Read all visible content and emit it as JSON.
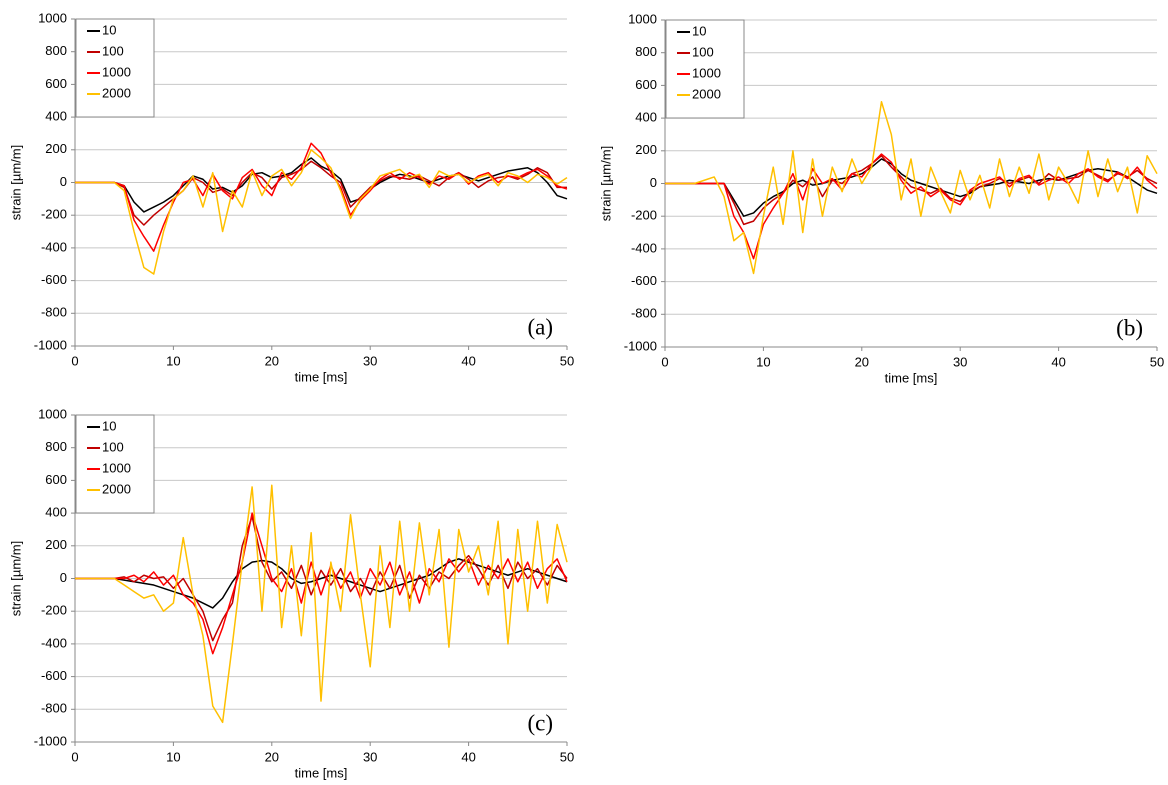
{
  "chart_data": [
    {
      "type": "line",
      "xlabel": "time [ms]",
      "ylabel": "strain [µm/m]",
      "annotation": "(a)",
      "x": [
        0,
        1,
        2,
        3,
        4,
        5,
        6,
        7,
        8,
        9,
        10,
        11,
        12,
        13,
        14,
        15,
        16,
        17,
        18,
        19,
        20,
        21,
        22,
        23,
        24,
        25,
        26,
        27,
        28,
        29,
        30,
        31,
        32,
        33,
        34,
        35,
        36,
        37,
        38,
        39,
        40,
        41,
        42,
        43,
        44,
        45,
        46,
        47,
        48,
        49,
        50
      ],
      "series": [
        {
          "name": "10",
          "color": "#000000",
          "values": [
            0,
            0,
            0,
            0,
            0,
            -20,
            -120,
            -180,
            -150,
            -120,
            -80,
            -20,
            40,
            20,
            -40,
            -30,
            -60,
            -20,
            50,
            60,
            30,
            40,
            60,
            110,
            150,
            100,
            70,
            20,
            -120,
            -100,
            -40,
            0,
            30,
            50,
            40,
            20,
            0,
            20,
            40,
            50,
            30,
            10,
            30,
            50,
            70,
            80,
            90,
            60,
            0,
            -80,
            -100
          ]
        },
        {
          "name": "100",
          "color": "#c00000",
          "values": [
            0,
            0,
            0,
            0,
            0,
            -30,
            -200,
            -260,
            -200,
            -150,
            -100,
            -50,
            30,
            0,
            -60,
            -40,
            -80,
            0,
            60,
            30,
            -40,
            30,
            50,
            80,
            130,
            90,
            40,
            0,
            -150,
            -90,
            -30,
            10,
            40,
            30,
            20,
            40,
            10,
            -20,
            30,
            60,
            20,
            -30,
            10,
            30,
            40,
            20,
            50,
            90,
            60,
            -30,
            -30
          ]
        },
        {
          "name": "1000",
          "color": "#ff0000",
          "values": [
            0,
            0,
            0,
            0,
            0,
            -20,
            -230,
            -330,
            -420,
            -260,
            -120,
            0,
            20,
            -80,
            50,
            -50,
            -100,
            30,
            80,
            -20,
            -80,
            60,
            20,
            90,
            240,
            180,
            60,
            -30,
            -200,
            -110,
            -50,
            20,
            60,
            20,
            60,
            30,
            -10,
            40,
            20,
            60,
            -10,
            40,
            60,
            0,
            40,
            30,
            60,
            80,
            40,
            -20,
            -40
          ]
        },
        {
          "name": "2000",
          "color": "#ffc000",
          "values": [
            0,
            0,
            0,
            0,
            0,
            -50,
            -300,
            -520,
            -560,
            -300,
            -100,
            -50,
            40,
            -150,
            60,
            -300,
            -50,
            -150,
            70,
            -80,
            40,
            80,
            -20,
            60,
            200,
            150,
            90,
            -50,
            -220,
            -100,
            -40,
            40,
            60,
            80,
            30,
            50,
            -30,
            70,
            40,
            50,
            0,
            30,
            50,
            -20,
            60,
            40,
            0,
            50,
            30,
            -10,
            30
          ]
        }
      ],
      "xlim": [
        0,
        50
      ],
      "ylim": [
        -1000,
        1000
      ],
      "xticks": [
        0,
        10,
        20,
        30,
        40,
        50
      ],
      "yticks": [
        -1000,
        -800,
        -600,
        -400,
        -200,
        0,
        200,
        400,
        600,
        800,
        1000
      ],
      "grid": true,
      "legend": "upper left"
    },
    {
      "type": "line",
      "xlabel": "time [ms]",
      "ylabel": "strain [µm/m]",
      "annotation": "(b)",
      "x": [
        0,
        1,
        2,
        3,
        4,
        5,
        6,
        7,
        8,
        9,
        10,
        11,
        12,
        13,
        14,
        15,
        16,
        17,
        18,
        19,
        20,
        21,
        22,
        23,
        24,
        25,
        26,
        27,
        28,
        29,
        30,
        31,
        32,
        33,
        34,
        35,
        36,
        37,
        38,
        39,
        40,
        41,
        42,
        43,
        44,
        45,
        46,
        47,
        48,
        49,
        50
      ],
      "series": [
        {
          "name": "10",
          "color": "#000000",
          "values": [
            0,
            0,
            0,
            0,
            0,
            0,
            0,
            -100,
            -200,
            -180,
            -120,
            -80,
            -50,
            0,
            20,
            -10,
            0,
            20,
            30,
            40,
            60,
            100,
            150,
            120,
            60,
            20,
            0,
            -20,
            -40,
            -60,
            -80,
            -60,
            -20,
            -10,
            0,
            20,
            10,
            0,
            20,
            30,
            20,
            40,
            60,
            80,
            90,
            80,
            70,
            40,
            0,
            -40,
            -60
          ]
        },
        {
          "name": "100",
          "color": "#c00000",
          "values": [
            0,
            0,
            0,
            0,
            0,
            0,
            0,
            -120,
            -250,
            -230,
            -150,
            -100,
            -60,
            20,
            -20,
            40,
            -80,
            20,
            0,
            60,
            80,
            120,
            170,
            100,
            40,
            -20,
            -40,
            -60,
            -30,
            -90,
            -110,
            -50,
            -20,
            0,
            30,
            0,
            20,
            40,
            0,
            60,
            20,
            30,
            40,
            80,
            50,
            20,
            60,
            40,
            80,
            30,
            0
          ]
        },
        {
          "name": "1000",
          "color": "#ff0000",
          "values": [
            0,
            0,
            0,
            0,
            0,
            0,
            0,
            -200,
            -300,
            -460,
            -250,
            -150,
            -60,
            60,
            -100,
            90,
            0,
            30,
            -40,
            60,
            40,
            120,
            180,
            130,
            20,
            -60,
            -20,
            -80,
            -40,
            -100,
            -130,
            -40,
            0,
            20,
            40,
            -20,
            30,
            50,
            -10,
            20,
            40,
            0,
            60,
            90,
            40,
            10,
            70,
            30,
            100,
            20,
            -30
          ]
        },
        {
          "name": "2000",
          "color": "#ffc000",
          "values": [
            0,
            0,
            0,
            0,
            20,
            40,
            -80,
            -350,
            -300,
            -550,
            -200,
            100,
            -250,
            200,
            -300,
            150,
            -200,
            100,
            -50,
            150,
            0,
            100,
            500,
            300,
            -100,
            150,
            -200,
            100,
            -50,
            -180,
            80,
            -100,
            50,
            -150,
            150,
            -80,
            100,
            -60,
            180,
            -100,
            100,
            0,
            -120,
            200,
            -80,
            150,
            -50,
            100,
            -180,
            170,
            60
          ]
        }
      ],
      "xlim": [
        0,
        50
      ],
      "ylim": [
        -1000,
        1000
      ],
      "xticks": [
        0,
        10,
        20,
        30,
        40,
        50
      ],
      "yticks": [
        -1000,
        -800,
        -600,
        -400,
        -200,
        0,
        200,
        400,
        600,
        800,
        1000
      ],
      "grid": true,
      "legend": "upper left"
    },
    {
      "type": "line",
      "xlabel": "time [ms]",
      "ylabel": "strain [µm/m]",
      "annotation": "(c)",
      "x": [
        0,
        1,
        2,
        3,
        4,
        5,
        6,
        7,
        8,
        9,
        10,
        11,
        12,
        13,
        14,
        15,
        16,
        17,
        18,
        19,
        20,
        21,
        22,
        23,
        24,
        25,
        26,
        27,
        28,
        29,
        30,
        31,
        32,
        33,
        34,
        35,
        36,
        37,
        38,
        39,
        40,
        41,
        42,
        43,
        44,
        45,
        46,
        47,
        48,
        49,
        50
      ],
      "series": [
        {
          "name": "10",
          "color": "#000000",
          "values": [
            0,
            0,
            0,
            0,
            0,
            -10,
            -20,
            -30,
            -40,
            -60,
            -80,
            -100,
            -120,
            -150,
            -180,
            -120,
            -20,
            60,
            100,
            110,
            100,
            60,
            0,
            -30,
            -20,
            0,
            20,
            0,
            -20,
            -40,
            -60,
            -80,
            -60,
            -40,
            -20,
            0,
            20,
            60,
            100,
            120,
            100,
            80,
            60,
            40,
            20,
            40,
            60,
            40,
            20,
            0,
            -20
          ]
        },
        {
          "name": "100",
          "color": "#c00000",
          "values": [
            0,
            0,
            0,
            0,
            0,
            10,
            -20,
            20,
            0,
            10,
            -60,
            0,
            -100,
            -200,
            -380,
            -250,
            -150,
            200,
            380,
            100,
            -20,
            40,
            -60,
            80,
            -100,
            50,
            -40,
            60,
            -80,
            0,
            -100,
            40,
            -60,
            80,
            -120,
            20,
            -60,
            40,
            0,
            80,
            140,
            60,
            -40,
            80,
            -60,
            100,
            0,
            60,
            -40,
            80,
            0
          ]
        },
        {
          "name": "1000",
          "color": "#ff0000",
          "values": [
            0,
            0,
            0,
            0,
            0,
            0,
            20,
            -20,
            40,
            -40,
            20,
            -100,
            -150,
            -250,
            -460,
            -300,
            -100,
            100,
            400,
            200,
            0,
            -80,
            60,
            -150,
            100,
            -100,
            80,
            -60,
            40,
            -120,
            60,
            -40,
            100,
            -100,
            40,
            -150,
            60,
            -20,
            120,
            40,
            120,
            -40,
            80,
            0,
            120,
            -20,
            100,
            -60,
            60,
            120,
            -20
          ]
        },
        {
          "name": "2000",
          "color": "#ffc000",
          "values": [
            0,
            0,
            0,
            0,
            0,
            -40,
            -80,
            -120,
            -100,
            -200,
            -150,
            250,
            -100,
            -350,
            -780,
            -880,
            -400,
            100,
            560,
            -200,
            570,
            -300,
            200,
            -350,
            280,
            -750,
            100,
            -200,
            390,
            -100,
            -540,
            200,
            -300,
            350,
            -200,
            340,
            -100,
            300,
            -420,
            300,
            40,
            200,
            -100,
            350,
            -400,
            300,
            -200,
            350,
            -150,
            330,
            100
          ]
        }
      ],
      "xlim": [
        0,
        50
      ],
      "ylim": [
        -1000,
        1000
      ],
      "xticks": [
        0,
        10,
        20,
        30,
        40,
        50
      ],
      "yticks": [
        -1000,
        -800,
        -600,
        -400,
        -200,
        0,
        200,
        400,
        600,
        800,
        1000
      ],
      "grid": true,
      "legend": "upper left"
    }
  ]
}
